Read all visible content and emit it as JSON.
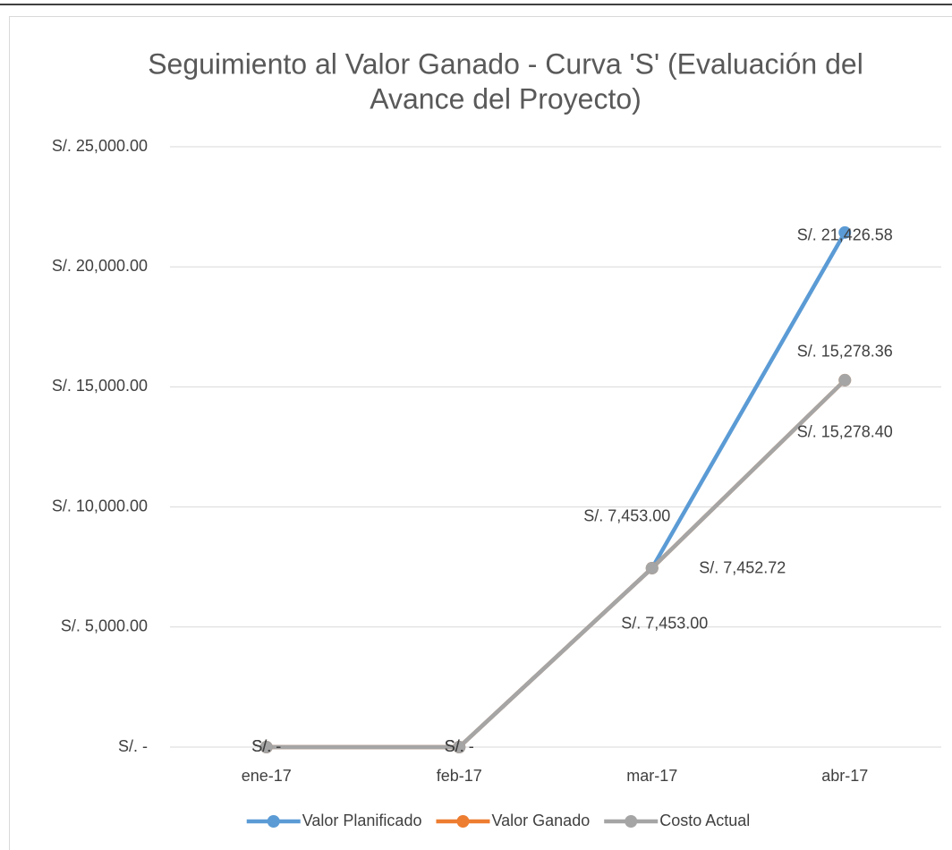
{
  "chart_data": {
    "type": "line",
    "title": [
      "Seguimiento al Valor Ganado - Curva 'S' (Evaluación del",
      "Avance del Proyecto)"
    ],
    "categories": [
      "ene-17",
      "feb-17",
      "mar-17",
      "abr-17"
    ],
    "series": [
      {
        "name": "Valor Planificado",
        "color": "#5b9bd5",
        "values": [
          0,
          0,
          7453.0,
          21426.58
        ],
        "value_labels": [
          "S/. -",
          "S/. -",
          "S/. 7,453.00",
          "S/. 21,426.58"
        ]
      },
      {
        "name": "Valor Ganado",
        "color": "#ed7d31",
        "values": [
          0,
          0,
          7453.0,
          15278.4
        ],
        "value_labels": [
          "S/. -",
          "S/. -",
          "S/. 7,453.00",
          "S/. 15,278.40"
        ]
      },
      {
        "name": "Costo Actual",
        "color": "#a5a5a5",
        "values": [
          0,
          0,
          7452.72,
          15278.36
        ],
        "value_labels": [
          "S/. -",
          "S/. -",
          "S/. 7,452.72",
          "S/. 15,278.36"
        ]
      }
    ],
    "ylim": [
      0,
      25000
    ],
    "yticks": [
      {
        "value": 0,
        "label": "S/. -"
      },
      {
        "value": 5000,
        "label": "S/. 5,000.00"
      },
      {
        "value": 10000,
        "label": "S/. 10,000.00"
      },
      {
        "value": 15000,
        "label": "S/. 15,000.00"
      },
      {
        "value": 20000,
        "label": "S/. 20,000.00"
      },
      {
        "value": 25000,
        "label": "S/. 25,000.00"
      }
    ],
    "grid": true,
    "legend": "bottom"
  }
}
